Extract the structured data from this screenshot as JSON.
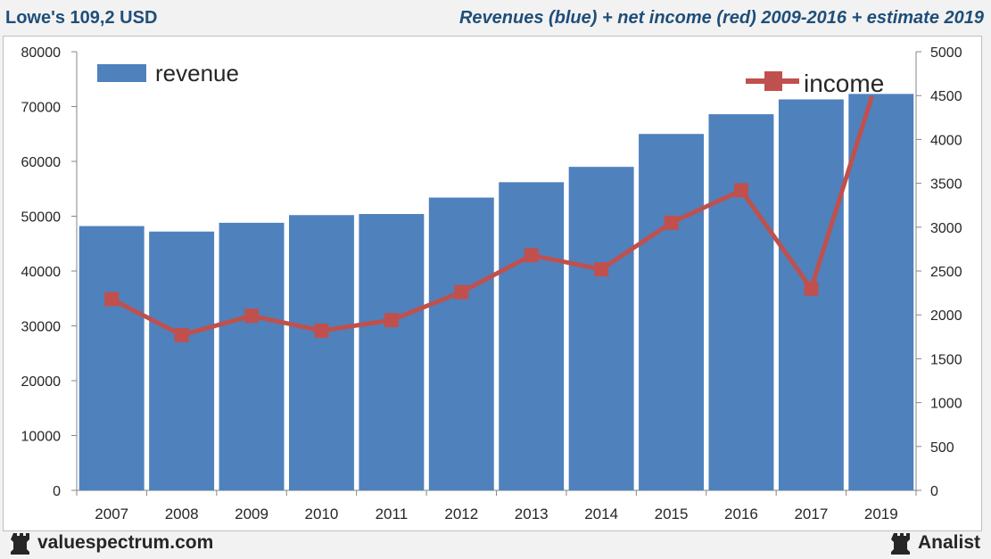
{
  "header": {
    "ticker": "Lowe's 109,2 USD",
    "title": "Revenues (blue) + net income (red) 2009-2016 + estimate 2019"
  },
  "footer": {
    "site": "valuespectrum.com",
    "brand": "Analist",
    "icon": "chess-rook-icon"
  },
  "colors": {
    "revenue": "#4f81bd",
    "income": "#c0504d",
    "title": "#1f4e79"
  },
  "chart_data": {
    "type": "bar",
    "categories": [
      "2007",
      "2008",
      "2009",
      "2010",
      "2011",
      "2012",
      "2013",
      "2014",
      "2015",
      "2016",
      "2017",
      "2019"
    ],
    "series": [
      {
        "name": "revenue",
        "type": "bar",
        "axis": "left",
        "values": [
          48200,
          47200,
          48800,
          50200,
          50400,
          53400,
          56200,
          59000,
          65000,
          68600,
          71300,
          72300
        ]
      },
      {
        "name": "income",
        "type": "line",
        "axis": "right",
        "values": [
          2180,
          1770,
          1990,
          1820,
          1940,
          2260,
          2680,
          2520,
          3050,
          3420,
          2300,
          4820
        ]
      }
    ],
    "yleft": {
      "min": 0,
      "max": 80000,
      "ticks": [
        "0",
        "10000",
        "20000",
        "30000",
        "40000",
        "50000",
        "60000",
        "70000",
        "80000"
      ]
    },
    "yright": {
      "min": 0,
      "max": 5000,
      "ticks": [
        "0",
        "500",
        "1000",
        "1500",
        "2000",
        "2500",
        "3000",
        "3500",
        "4000",
        "4500",
        "5000"
      ]
    },
    "legend": {
      "revenue_label": "revenue",
      "income_label": "income",
      "revenue_position": "top-left",
      "income_position": "top-right"
    },
    "grid": false
  }
}
